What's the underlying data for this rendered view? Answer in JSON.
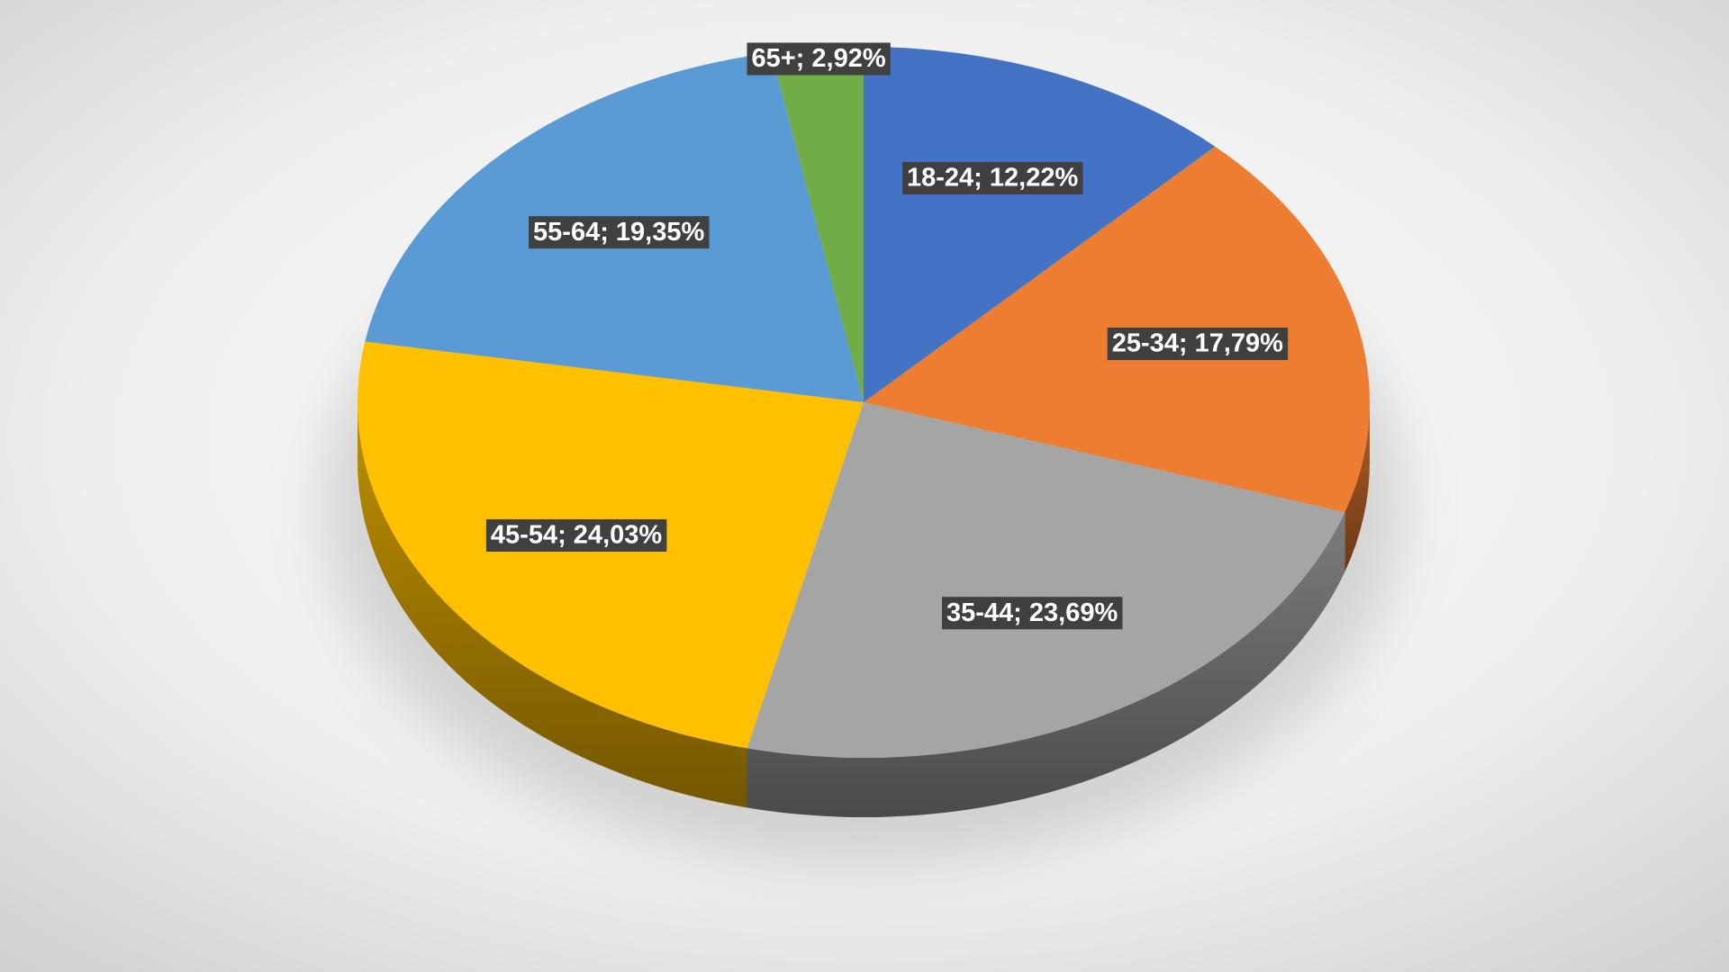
{
  "chart_data": {
    "type": "pie",
    "style": "3d",
    "values": [
      12.22,
      17.79,
      23.69,
      24.03,
      19.35,
      2.92
    ],
    "value_labels": [
      "18-24; 12,22%",
      "25-34; 17,79%",
      "35-44; 23,69%",
      "45-54; 24,03%",
      "55-64; 19,35%",
      "65+; 2,92%"
    ],
    "colors": [
      "#4472c4",
      "#ed7d31",
      "#a5a5a5",
      "#ffc000",
      "#5b9bd5",
      "#70ad47"
    ]
  }
}
